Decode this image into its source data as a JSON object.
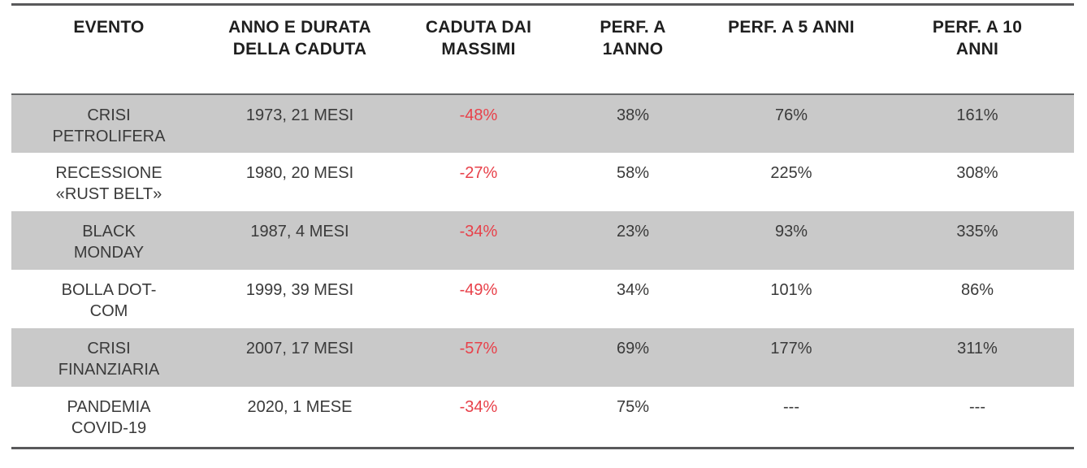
{
  "chart_data": {
    "type": "table",
    "columns": [
      "EVENTO",
      "ANNO E DURATA DELLA CADUTA",
      "CADUTA DAI MASSIMI",
      "PERF. A 1ANNO",
      "PERF. A 5 ANNI",
      "PERF. A 10 ANNI"
    ],
    "rows": [
      [
        "CRISI PETROLIFERA",
        "1973, 21 MESI",
        "-48%",
        "38%",
        "76%",
        "161%"
      ],
      [
        "RECESSIONE «RUST BELT»",
        "1980, 20 MESI",
        "-27%",
        "58%",
        "225%",
        "308%"
      ],
      [
        "BLACK MONDAY",
        "1987, 4 MESI",
        "-34%",
        "23%",
        "93%",
        "335%"
      ],
      [
        "BOLLA DOT-COM",
        "1999, 39 MESI",
        "-49%",
        "34%",
        "101%",
        "86%"
      ],
      [
        "CRISI FINANZIARIA",
        "2007, 17 MESI",
        "-57%",
        "69%",
        "177%",
        "311%"
      ],
      [
        "PANDEMIA COVID-19",
        "2020, 1 MESE",
        "-34%",
        "75%",
        "---",
        "---"
      ]
    ],
    "missing_value_marker": "---",
    "negative_values_column": "CADUTA DAI MASSIMI"
  },
  "table_display": {
    "headers": [
      "EVENTO",
      "ANNO E DURATA\nDELLA CADUTA",
      "CADUTA DAI\nMASSIMI",
      "PERF. A\n1ANNO",
      "PERF. A 5 ANNI",
      "PERF. A 10\nANNI"
    ],
    "rows": [
      [
        "CRISI\nPETROLIFERA",
        "1973, 21 MESI",
        "-48%",
        "38%",
        "76%",
        "161%"
      ],
      [
        "RECESSIONE\n«RUST BELT»",
        "1980, 20 MESI",
        "-27%",
        "58%",
        "225%",
        "308%"
      ],
      [
        "BLACK\nMONDAY",
        "1987, 4 MESI",
        "-34%",
        "23%",
        "93%",
        "335%"
      ],
      [
        "BOLLA DOT-\nCOM",
        "1999, 39 MESI",
        "-49%",
        "34%",
        "101%",
        "86%"
      ],
      [
        "CRISI\nFINANZIARIA",
        "2007, 17 MESI",
        "-57%",
        "69%",
        "177%",
        "311%"
      ],
      [
        "PANDEMIA\nCOVID-19",
        "2020, 1 MESE",
        "-34%",
        "75%",
        "---",
        "---"
      ]
    ]
  },
  "colors": {
    "negative_text": "#e8414a",
    "shaded_row_bg": "#c9c9c9",
    "table_border": "#59595b",
    "header_text": "#1f1f1f",
    "body_text": "#3a3a3a"
  }
}
